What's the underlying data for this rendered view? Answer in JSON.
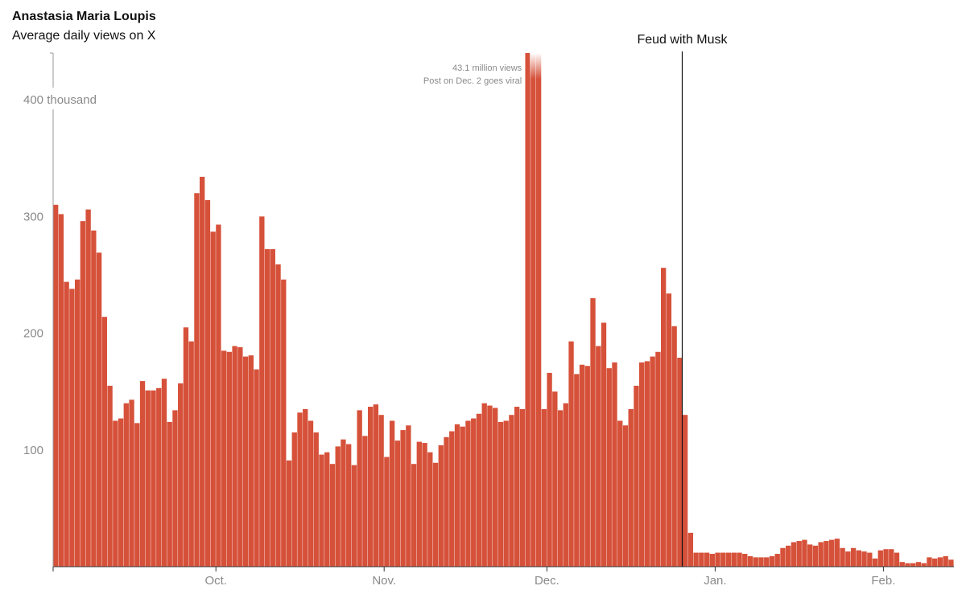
{
  "header": {
    "title": "Anastasia Maria Loupis",
    "subtitle": "Average daily views on X"
  },
  "chart_data": {
    "type": "bar",
    "title": "Anastasia Maria Loupis",
    "subtitle": "Average daily views on X",
    "xlabel": "",
    "ylabel": "",
    "y_unit": "thousand",
    "ylim": [
      0,
      440
    ],
    "y_ticks": [
      {
        "value": 100,
        "label": "100"
      },
      {
        "value": 200,
        "label": "200"
      },
      {
        "value": 300,
        "label": "300"
      },
      {
        "value": 400,
        "label": "400 thousand"
      }
    ],
    "x_ticks": [
      {
        "index": 0,
        "label": ""
      },
      {
        "index": 30,
        "label": "Oct."
      },
      {
        "index": 61,
        "label": "Nov."
      },
      {
        "index": 91,
        "label": "Dec."
      },
      {
        "index": 122,
        "label": "Jan."
      },
      {
        "index": 153,
        "label": "Feb."
      },
      {
        "index": 177,
        "label": ""
      }
    ],
    "bar_color": "#d6513a",
    "event_line_color": "#111111",
    "values": [
      310,
      302,
      244,
      238,
      246,
      296,
      306,
      288,
      269,
      214,
      155,
      125,
      127,
      140,
      143,
      123,
      159,
      151,
      151,
      153,
      161,
      124,
      134,
      157,
      205,
      193,
      320,
      334,
      314,
      287,
      293,
      185,
      184,
      189,
      188,
      180,
      181,
      169,
      300,
      272,
      272,
      259,
      246,
      91,
      115,
      132,
      135,
      125,
      115,
      96,
      98,
      88,
      103,
      109,
      105,
      87,
      134,
      112,
      137,
      139,
      130,
      94,
      125,
      108,
      117,
      121,
      88,
      107,
      106,
      98,
      89,
      104,
      111,
      116,
      122,
      120,
      125,
      127,
      131,
      140,
      138,
      136,
      124,
      125,
      130,
      137,
      135,
      440,
      440,
      440,
      135,
      166,
      150,
      134,
      140,
      193,
      165,
      173,
      172,
      230,
      189,
      209,
      170,
      175,
      125,
      121,
      135,
      155,
      175,
      176,
      180,
      184,
      256,
      234,
      206,
      179,
      130,
      29,
      12,
      12,
      12,
      11,
      12,
      12,
      12,
      12,
      12,
      11,
      9,
      8,
      8,
      8,
      9,
      11,
      16,
      18,
      21,
      22,
      23,
      19,
      18,
      21,
      22,
      23,
      24,
      16,
      13,
      16,
      14,
      13,
      12,
      7,
      14,
      15,
      15,
      12,
      4,
      3,
      3,
      4,
      3,
      8,
      7,
      8,
      9,
      6
    ],
    "annotations": [
      {
        "index": 88,
        "text_lines": [
          "43.1 million views",
          "Post on Dec. 2 goes viral"
        ],
        "actual_value_millions": 43.1,
        "note": "bar truncated at top"
      }
    ],
    "event": {
      "index": 116,
      "label": "Feud with Musk"
    },
    "grid": false,
    "legend": "none"
  }
}
